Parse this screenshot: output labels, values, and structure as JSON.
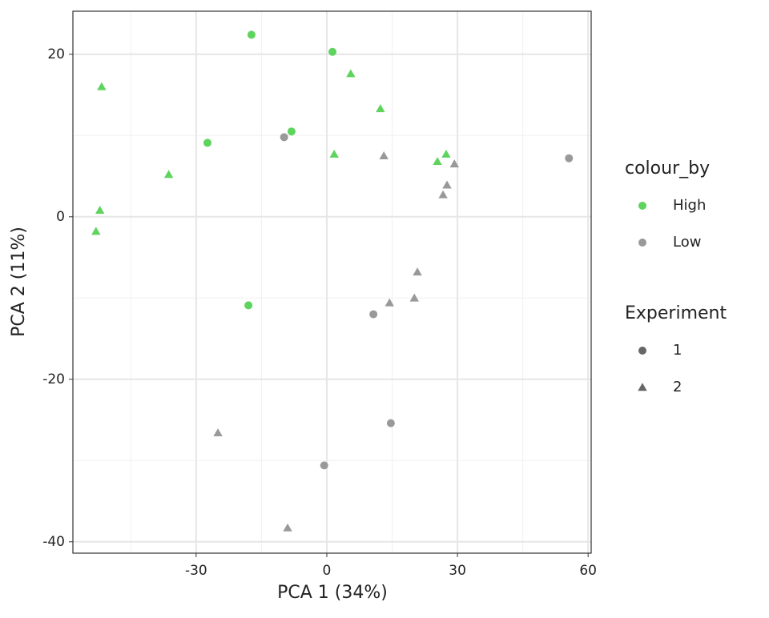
{
  "chart_data": {
    "type": "scatter",
    "x_label": "PCA 1 (34%)",
    "y_label": "PCA 2 (11%)",
    "xlim": [
      -58.3,
      60.7
    ],
    "ylim": [
      -41.4,
      25.3
    ],
    "xticks": [
      -30,
      0,
      30,
      60
    ],
    "yticks": [
      -40,
      -20,
      0,
      20
    ],
    "x_minor_grid": [
      -45,
      -15,
      15,
      45
    ],
    "y_minor_grid": [
      -30,
      -10,
      10
    ],
    "grid": true,
    "series": [
      {
        "color": "#5ed45e",
        "marker": "circle",
        "x": [
          -17.3,
          1.3,
          -8.1,
          -27.4,
          -18.0
        ],
        "y": [
          22.4,
          20.3,
          10.5,
          9.1,
          -10.9
        ]
      },
      {
        "color": "#5ed45e",
        "marker": "triangle",
        "x": [
          -51.7,
          5.5,
          12.3,
          -36.3,
          1.7,
          25.4,
          27.4,
          -52.1,
          -53.0
        ],
        "y": [
          16.0,
          17.6,
          13.3,
          5.2,
          7.7,
          6.8,
          7.7,
          0.8,
          -1.8
        ]
      },
      {
        "color": "#999999",
        "marker": "circle",
        "x": [
          -9.8,
          55.6,
          10.7,
          14.7,
          -0.6
        ],
        "y": [
          9.8,
          7.2,
          -12.0,
          -25.4,
          -30.6
        ]
      },
      {
        "color": "#999999",
        "marker": "triangle",
        "x": [
          13.1,
          29.3,
          27.6,
          26.7,
          20.8,
          14.4,
          20.1,
          -25.0,
          -9.0
        ],
        "y": [
          7.5,
          6.5,
          3.9,
          2.7,
          -6.8,
          -10.6,
          -10.0,
          -26.6,
          -38.3
        ]
      }
    ],
    "legends": [
      {
        "title": "colour_by",
        "entries": [
          {
            "label": "High",
            "color": "#5ed45e",
            "marker": "circle"
          },
          {
            "label": "Low",
            "color": "#999999",
            "marker": "circle"
          }
        ]
      },
      {
        "title": "Experiment",
        "entries": [
          {
            "label": "1",
            "color": "#666666",
            "marker": "circle"
          },
          {
            "label": "2",
            "color": "#666666",
            "marker": "triangle"
          }
        ]
      }
    ]
  }
}
